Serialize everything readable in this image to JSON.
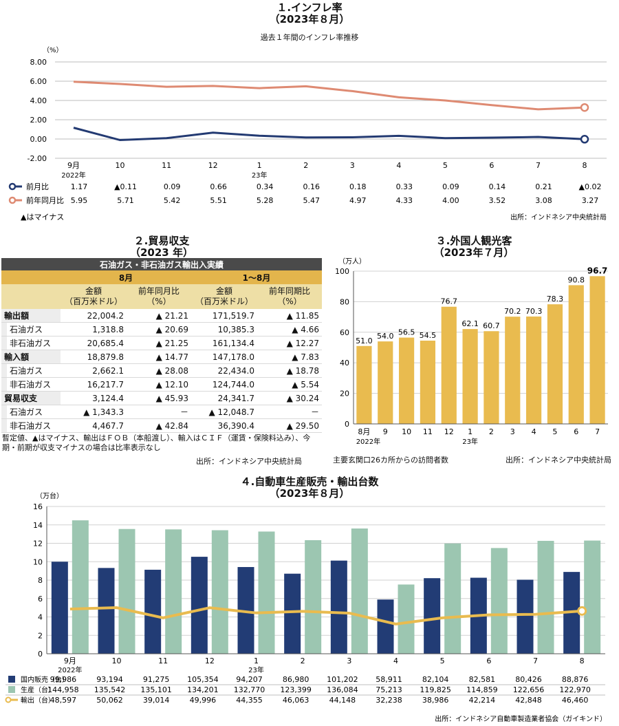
{
  "chart_data": [
    {
      "type": "line",
      "title": "１.インフレ率",
      "subtitle": "（2023年８月）",
      "caption": "過去１年間のインフレ率推移",
      "ylabel": "（%）",
      "ylim": [
        -2,
        8
      ],
      "yticks": [
        "8.00",
        "6.00",
        "4.00",
        "2.00",
        "0.00",
        "-2.00"
      ],
      "categories": [
        "9月",
        "10",
        "11",
        "12",
        "1",
        "2",
        "3",
        "4",
        "5",
        "6",
        "7",
        "8"
      ],
      "category_sub": {
        "0": "2022年",
        "4": "23年"
      },
      "series": [
        {
          "name": "前月比",
          "color": "#233a72",
          "values": [
            1.17,
            -0.11,
            0.09,
            0.66,
            0.34,
            0.16,
            0.18,
            0.33,
            0.09,
            0.14,
            0.21,
            -0.02
          ],
          "labels": [
            "1.17",
            "▲0.11",
            "0.09",
            "0.66",
            "0.34",
            "0.16",
            "0.18",
            "0.33",
            "0.09",
            "0.14",
            "0.21",
            "▲0.02"
          ]
        },
        {
          "name": "前年同月比",
          "color": "#de8a72",
          "values": [
            5.95,
            5.71,
            5.42,
            5.51,
            5.28,
            5.47,
            4.97,
            4.33,
            4.0,
            3.52,
            3.08,
            3.27
          ],
          "labels": [
            "5.95",
            "5.71",
            "5.42",
            "5.51",
            "5.28",
            "5.47",
            "4.97",
            "4.33",
            "4.00",
            "3.52",
            "3.08",
            "3.27"
          ]
        }
      ],
      "note": "▲はマイナス",
      "source": "出所：インドネシア中央統計局",
      "grid": true
    },
    {
      "type": "table",
      "title": "２.貿易収支",
      "subtitle": "（2023 年）",
      "header": "石油ガス・非石油ガス輸出入実績",
      "periods": [
        "8月",
        "1～8月"
      ],
      "columns": [
        "金額\n（百万米ドル）",
        "前年同月比\n（%）",
        "金額\n（百万米ドル）",
        "前年同期比\n（%）"
      ],
      "rows": [
        {
          "label": "輸出額",
          "indent": false,
          "values": [
            "22,004.2",
            "▲ 21.21",
            "171,519.7",
            "▲ 11.85"
          ]
        },
        {
          "label": "石油ガス",
          "indent": true,
          "values": [
            "1,318.8",
            "▲ 20.69",
            "10,385.3",
            "▲ 4.66"
          ]
        },
        {
          "label": "非石油ガス",
          "indent": true,
          "values": [
            "20,685.4",
            "▲ 21.25",
            "161,134.4",
            "▲ 12.27"
          ]
        },
        {
          "label": "輸入額",
          "indent": false,
          "values": [
            "18,879.8",
            "▲ 14.77",
            "147,178.0",
            "▲ 7.83"
          ]
        },
        {
          "label": "石油ガス",
          "indent": true,
          "values": [
            "2,662.1",
            "▲ 28.08",
            "22,434.0",
            "▲ 18.78"
          ]
        },
        {
          "label": "非石油ガス",
          "indent": true,
          "values": [
            "16,217.7",
            "▲ 12.10",
            "124,744.0",
            "▲ 5.54"
          ]
        },
        {
          "label": "貿易収支",
          "indent": false,
          "values": [
            "3,124.4",
            "▲ 45.93",
            "24,341.7",
            "▲ 30.24"
          ]
        },
        {
          "label": "石油ガス",
          "indent": true,
          "values": [
            "▲ 1,343.3",
            "－",
            "▲ 12,048.7",
            "－"
          ]
        },
        {
          "label": "非石油ガス",
          "indent": true,
          "values": [
            "4,467.7",
            "▲ 42.84",
            "36,390.4",
            "▲ 29.50"
          ]
        }
      ],
      "note": "暫定値、▲はマイナス、輸出はＦＯＢ（本船渡し）、輸入はＣＩＦ（運賃・保険料込み）、今期・前期が収支マイナスの場合は比率表示なし",
      "source": "出所：インドネシア中央統計局"
    },
    {
      "type": "bar",
      "title": "３.外国人観光客",
      "subtitle": "（2023年７月）",
      "ylabel": "（万人）",
      "ylim": [
        0,
        100
      ],
      "yticks": [
        "100",
        "80",
        "60",
        "40",
        "20",
        "0"
      ],
      "categories": [
        "8月",
        "9",
        "10",
        "11",
        "12",
        "1",
        "2",
        "3",
        "4",
        "5",
        "6",
        "7"
      ],
      "category_sub": {
        "0": "2022年",
        "5": "23年"
      },
      "values": [
        51.0,
        54.0,
        56.5,
        54.5,
        76.7,
        62.1,
        60.7,
        70.2,
        70.3,
        78.3,
        90.8,
        96.7
      ],
      "labels": [
        "51.0",
        "54.0",
        "56.5",
        "54.5",
        "76.7",
        "62.1",
        "60.7",
        "70.2",
        "70.3",
        "78.3",
        "90.8",
        "96.7"
      ],
      "color": "#e9bb4f",
      "note": "主要玄関口26カ所からの訪問者数",
      "source": "出所：インドネシア中央統計局",
      "grid": true
    },
    {
      "type": "bar",
      "title": "４.自動車生産販売・輸出台数",
      "subtitle": "（2023年８月）",
      "ylabel": "（万台）",
      "ylim": [
        0,
        16
      ],
      "yticks": [
        "16",
        "14",
        "12",
        "10",
        "8",
        "6",
        "4",
        "2",
        "0"
      ],
      "categories": [
        "9月",
        "10",
        "11",
        "12",
        "1",
        "2",
        "3",
        "4",
        "5",
        "6",
        "7",
        "8"
      ],
      "category_sub": {
        "0": "2022年",
        "4": "23年"
      },
      "series": [
        {
          "name": "国内販売（台）",
          "kind": "bar",
          "color": "#223c75",
          "values": [
            99986,
            93194,
            91275,
            105354,
            94207,
            86980,
            101202,
            58911,
            82104,
            82581,
            80426,
            88876
          ],
          "labels": [
            "99,986",
            "93,194",
            "91,275",
            "105,354",
            "94,207",
            "86,980",
            "101,202",
            "58,911",
            "82,104",
            "82,581",
            "80,426",
            "88,876"
          ]
        },
        {
          "name": "生産（台）",
          "kind": "bar",
          "color": "#9cc6b1",
          "values": [
            144958,
            135542,
            135101,
            134201,
            132770,
            123399,
            136084,
            75213,
            119825,
            114859,
            122656,
            122970
          ],
          "labels": [
            "144,958",
            "135,542",
            "135,101",
            "134,201",
            "132,770",
            "123,399",
            "136,084",
            "75,213",
            "119,825",
            "114,859",
            "122,656",
            "122,970"
          ]
        },
        {
          "name": "輸出（台）",
          "kind": "line",
          "color": "#e9bb4f",
          "values": [
            48597,
            50062,
            39014,
            49996,
            44355,
            46063,
            44148,
            32238,
            38986,
            42214,
            42848,
            46460
          ],
          "labels": [
            "48,597",
            "50,062",
            "39,014",
            "49,996",
            "44,355",
            "46,063",
            "44,148",
            "32,238",
            "38,986",
            "42,214",
            "42,848",
            "46,460"
          ]
        }
      ],
      "source": "出所：インドネシア自動車製造業者協会（ガイキンド）",
      "grid": true
    }
  ]
}
